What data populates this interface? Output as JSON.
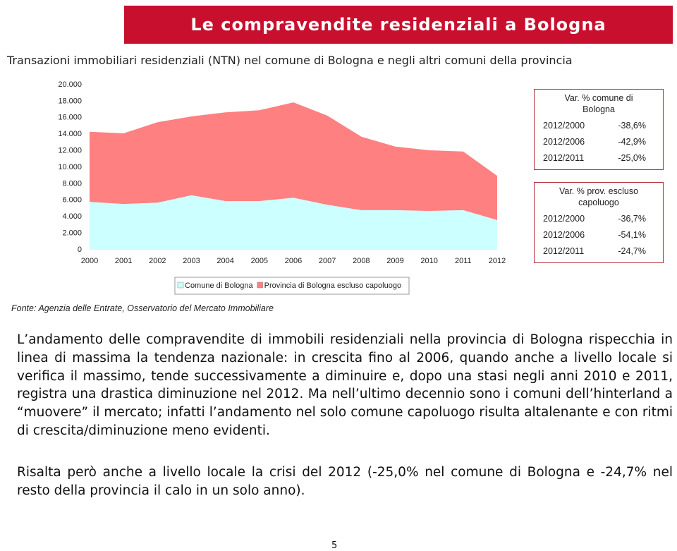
{
  "header": {
    "title": "Le compravendite residenziali a Bologna"
  },
  "subtitle": "Transazioni immobiliari residenziali (NTN) nel comune di Bologna e negli altri comuni della provincia",
  "chart_data": {
    "type": "stacked-area",
    "categories": [
      "2000",
      "2001",
      "2002",
      "2003",
      "2004",
      "2005",
      "2006",
      "2007",
      "2008",
      "2009",
      "2010",
      "2011",
      "2012"
    ],
    "series": [
      {
        "name": "Comune di Bologna",
        "color": "#ccffff",
        "values": [
          5800,
          5550,
          5700,
          6600,
          5900,
          5900,
          6300,
          5450,
          4800,
          4800,
          4700,
          4800,
          3600
        ]
      },
      {
        "name": "Provincia di Bologna escluso capoluogo",
        "color": "#ff8080",
        "values": [
          8500,
          8550,
          9750,
          9550,
          10750,
          11000,
          11550,
          10800,
          8900,
          7700,
          7350,
          7100,
          5350
        ]
      }
    ],
    "ylim": [
      0,
      20000
    ],
    "yticks": [
      0,
      {
        "value": 2000,
        "label": "2.000"
      },
      {
        "value": 4000,
        "label": "4.000"
      },
      {
        "value": 6000,
        "label": "6.000"
      },
      {
        "value": 8000,
        "label": "8.000"
      },
      {
        "value": 10000,
        "label": "10.000"
      },
      {
        "value": 12000,
        "label": "12.000"
      },
      {
        "value": 14000,
        "label": "14.000"
      },
      {
        "value": 16000,
        "label": "16.000"
      },
      {
        "value": 18000,
        "label": "18.000"
      },
      {
        "value": 20000,
        "label": "20.000"
      }
    ]
  },
  "tables": [
    {
      "header": "Var. % comune di Bologna",
      "rows": [
        [
          "2012/2000",
          "-38,6%"
        ],
        [
          "2012/2006",
          "-42,9%"
        ],
        [
          "2012/2011",
          "-25,0%"
        ]
      ]
    },
    {
      "header": "Var. % prov. escluso capoluogo",
      "rows": [
        [
          "2012/2000",
          "-36,7%"
        ],
        [
          "2012/2006",
          "-54,1%"
        ],
        [
          "2012/2011",
          "-24,7%"
        ]
      ]
    }
  ],
  "source": "Fonte: Agenzia delle Entrate, Osservatorio del Mercato Immobiliare",
  "paragraphs": [
    "L’andamento delle compravendite di immobili residenziali nella provincia di Bologna rispecchia in linea di massima la tendenza nazionale: in crescita fino al 2006, quando anche a livello locale si verifica il massimo, tende successivamente a diminuire e, dopo una stasi negli anni 2010 e 2011, registra una drastica diminuzione nel 2012. Ma nell’ultimo decennio sono i comuni dell’hinterland a “muovere” il mercato; infatti l’andamento nel solo comune capoluogo risulta altalenante e con ritmi di crescita/diminuzione meno evidenti.",
    "Risalta però anche a livello locale la crisi del 2012 (-25,0% nel comune di Bologna e -24,7% nel resto della provincia il calo in un solo anno)."
  ],
  "page_number": "5"
}
